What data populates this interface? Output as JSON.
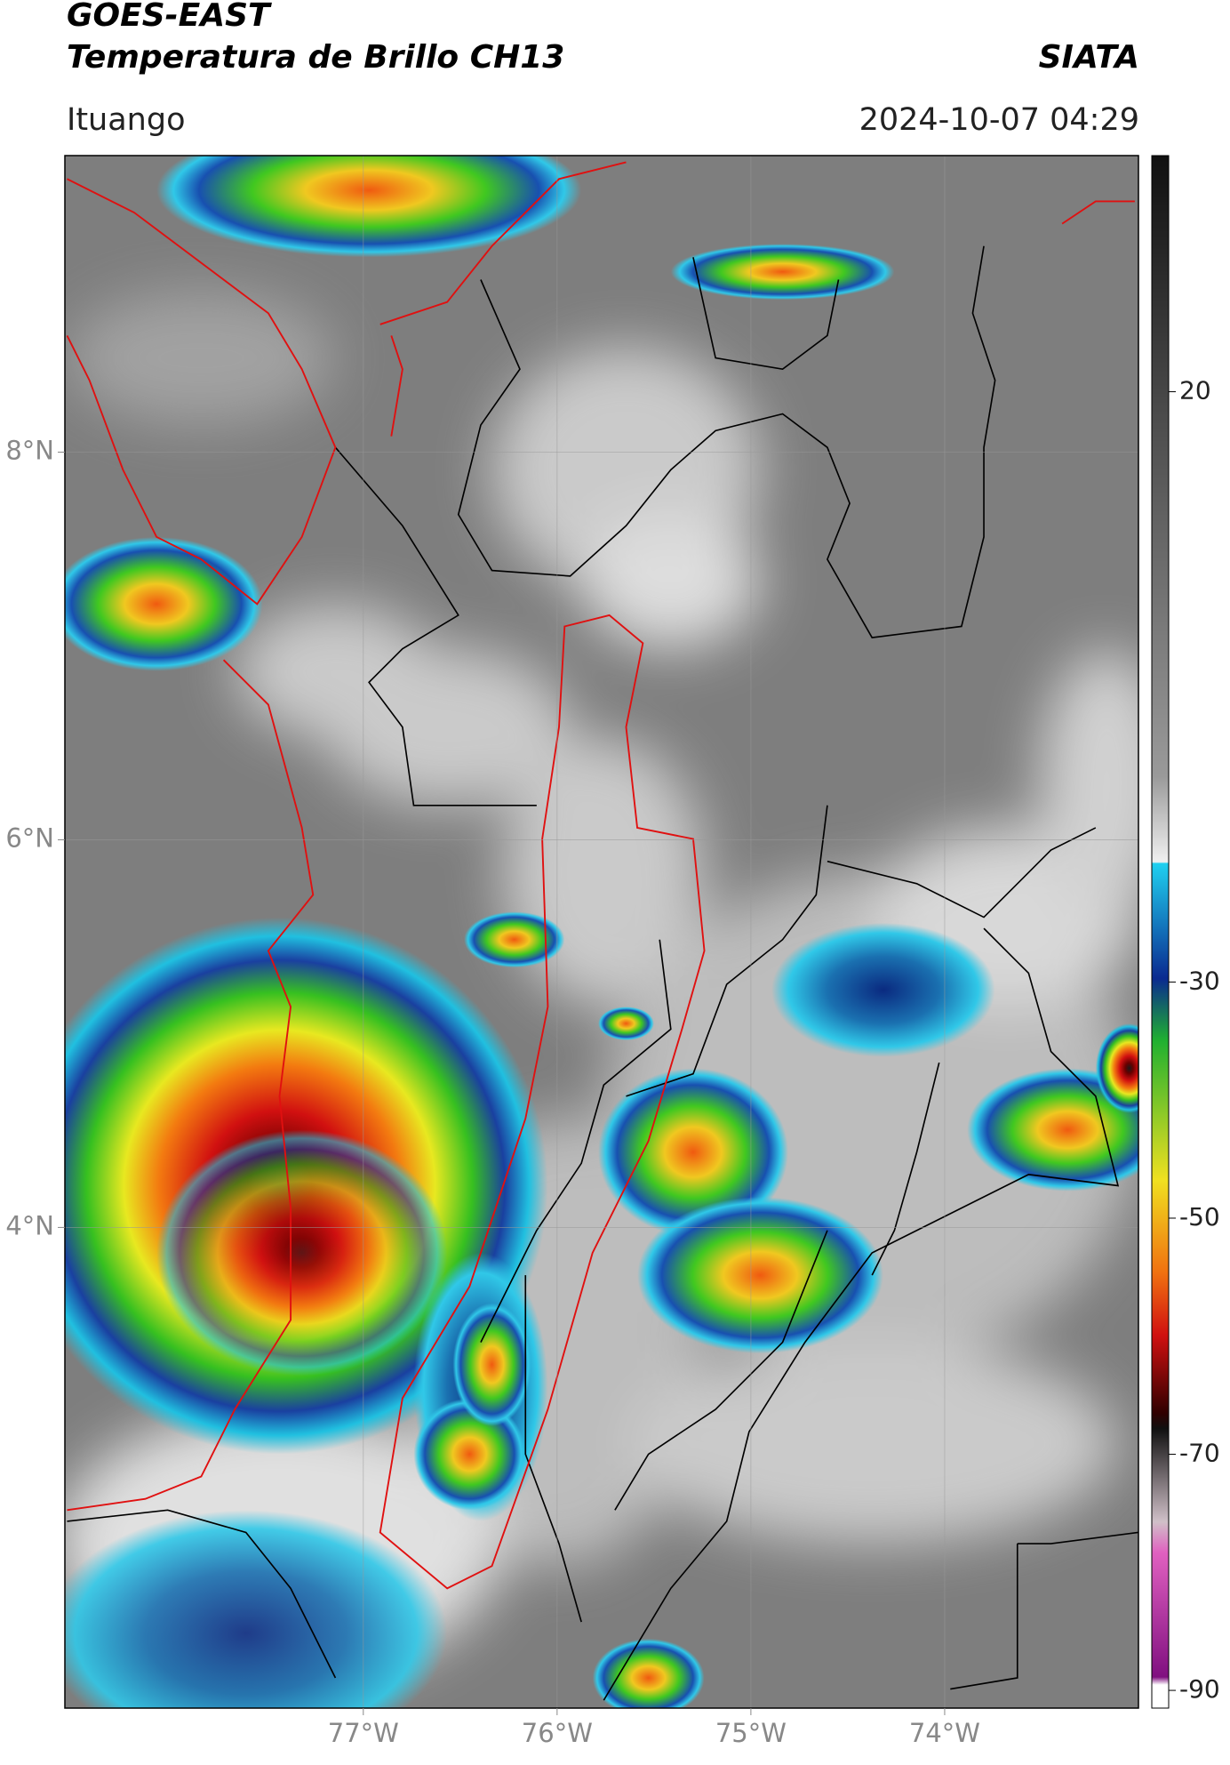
{
  "header": {
    "title": "GOES-EAST",
    "subtitle": "Temperatura de Brillo CH13",
    "source": "SIATA",
    "region": "Ituango",
    "timestamp": "2024-10-07 04:29"
  },
  "map": {
    "lonlim": [
      -78.54,
      -73.0
    ],
    "latlim": [
      1.52,
      9.53
    ],
    "lat_ticks": [
      {
        "value": 8,
        "label": "8°N"
      },
      {
        "value": 6,
        "label": "6°N"
      },
      {
        "value": 4,
        "label": "4°N"
      }
    ],
    "lon_ticks": [
      {
        "value": -77,
        "label": "77°W"
      },
      {
        "value": -76,
        "label": "76°W"
      },
      {
        "value": -75,
        "label": "75°W"
      },
      {
        "value": -74,
        "label": "74°W"
      }
    ],
    "grid": true
  },
  "colorbar": {
    "lim": [
      -91.5,
      40
    ],
    "ticks": [
      20,
      -30,
      -50,
      -70,
      -90
    ]
  }
}
